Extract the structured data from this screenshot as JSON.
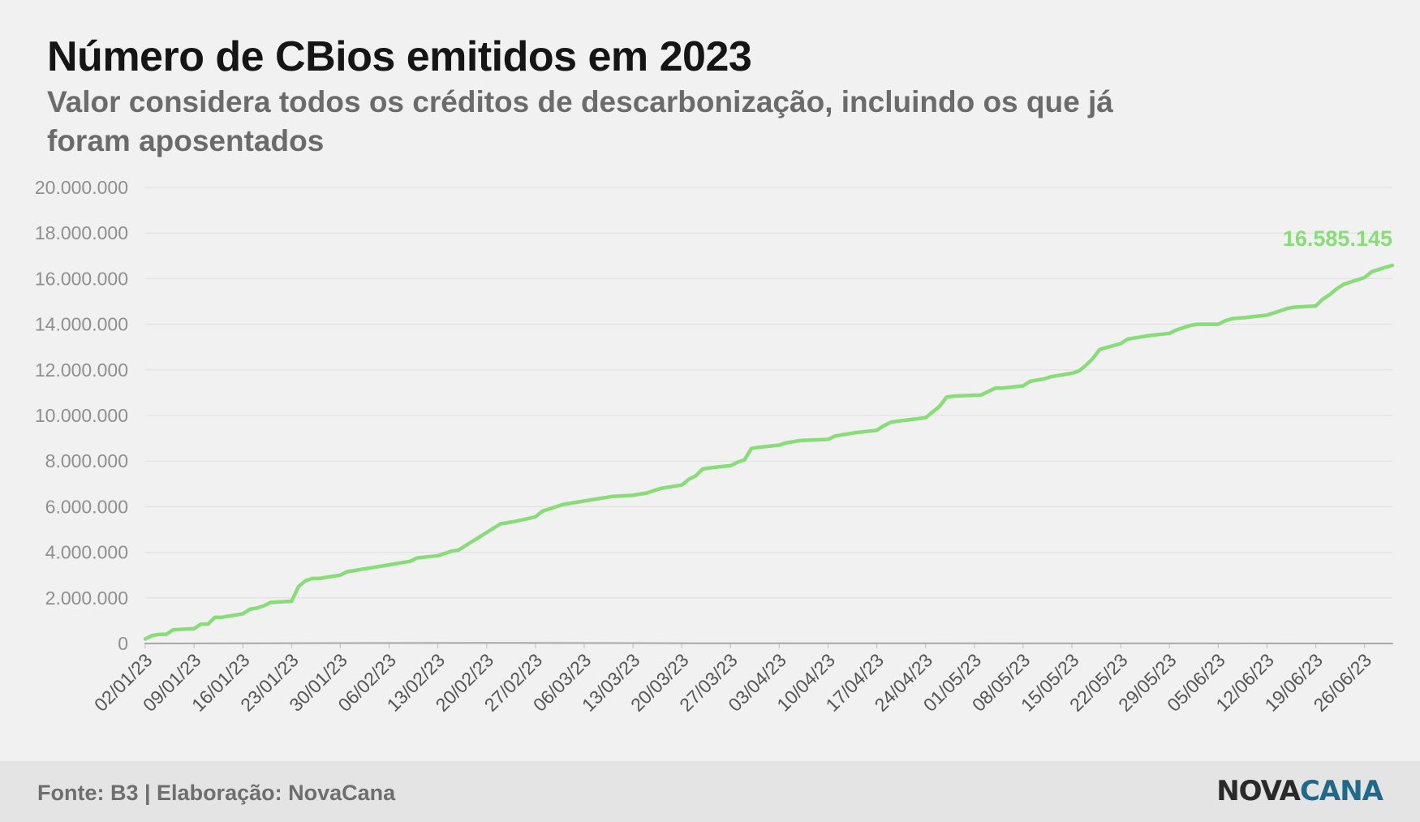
{
  "header": {
    "title": "Número de CBios emitidos em 2023",
    "subtitle": "Valor considera todos os créditos de descarbonização, incluindo os que já foram aposentados"
  },
  "footer": {
    "source": "Fonte: B3 | Elaboração: NovaCana",
    "logo_part1": "NOVA",
    "logo_part2": "CANA"
  },
  "colors": {
    "main_line": "#88dd78",
    "secondary_line": "#a8a8a8",
    "grid": "#e0e0e0",
    "logo_dark": "#2a2a2a",
    "logo_blue": "#1f6a8a"
  },
  "chart_data": {
    "type": "line",
    "title": "Número de CBios emitidos em 2023",
    "subtitle": "Valor considera todos os créditos de descarbonização, incluindo os que já foram aposentados",
    "xlabel": "",
    "ylabel": "",
    "ylim": [
      0,
      20000000
    ],
    "grid": true,
    "legend": "none",
    "y_ticks": [
      "0",
      "2.000.000",
      "4.000.000",
      "6.000.000",
      "8.000.000",
      "10.000.000",
      "12.000.000",
      "14.000.000",
      "16.000.000",
      "18.000.000",
      "20.000.000"
    ],
    "x_ticks": [
      "02/01/23",
      "09/01/23",
      "16/01/23",
      "23/01/23",
      "30/01/23",
      "06/02/23",
      "13/02/23",
      "20/02/23",
      "27/02/23",
      "06/03/23",
      "13/03/23",
      "20/03/23",
      "27/03/23",
      "03/04/23",
      "10/04/23",
      "17/04/23",
      "24/04/23",
      "01/05/23",
      "08/05/23",
      "15/05/23",
      "22/05/23",
      "29/05/23",
      "05/06/23",
      "12/06/23",
      "19/06/23",
      "26/06/23"
    ],
    "end_label": "16.585.145",
    "series": [
      {
        "x": [
          "2023-01-02",
          "2023-01-03",
          "2023-01-04",
          "2023-01-05",
          "2023-01-06",
          "2023-01-09",
          "2023-01-10",
          "2023-01-11",
          "2023-01-12",
          "2023-01-13",
          "2023-01-16",
          "2023-01-17",
          "2023-01-18",
          "2023-01-19",
          "2023-01-20",
          "2023-01-23",
          "2023-01-24",
          "2023-01-25",
          "2023-01-26",
          "2023-01-27",
          "2023-01-30",
          "2023-01-31",
          "2023-02-01",
          "2023-02-02",
          "2023-02-03",
          "2023-02-06",
          "2023-02-07",
          "2023-02-08",
          "2023-02-09",
          "2023-02-10",
          "2023-02-13",
          "2023-02-14",
          "2023-02-15",
          "2023-02-16",
          "2023-02-17",
          "2023-02-22",
          "2023-02-23",
          "2023-02-24",
          "2023-02-27",
          "2023-02-28",
          "2023-03-01",
          "2023-03-02",
          "2023-03-03",
          "2023-03-06",
          "2023-03-07",
          "2023-03-08",
          "2023-03-09",
          "2023-03-10",
          "2023-03-13",
          "2023-03-14",
          "2023-03-15",
          "2023-03-16",
          "2023-03-17",
          "2023-03-20",
          "2023-03-21",
          "2023-03-22",
          "2023-03-23",
          "2023-03-24",
          "2023-03-27",
          "2023-03-28",
          "2023-03-29",
          "2023-03-30",
          "2023-03-31",
          "2023-04-03",
          "2023-04-04",
          "2023-04-05",
          "2023-04-06",
          "2023-04-10",
          "2023-04-11",
          "2023-04-12",
          "2023-04-13",
          "2023-04-14",
          "2023-04-17",
          "2023-04-18",
          "2023-04-19",
          "2023-04-20",
          "2023-04-24",
          "2023-04-25",
          "2023-04-26",
          "2023-04-27",
          "2023-04-28",
          "2023-05-02",
          "2023-05-03",
          "2023-05-04",
          "2023-05-05",
          "2023-05-08",
          "2023-05-09",
          "2023-05-10",
          "2023-05-11",
          "2023-05-12",
          "2023-05-15",
          "2023-05-16",
          "2023-05-17",
          "2023-05-18",
          "2023-05-19",
          "2023-05-22",
          "2023-05-23",
          "2023-05-24",
          "2023-05-25",
          "2023-05-26",
          "2023-05-29",
          "2023-05-30",
          "2023-05-31",
          "2023-06-01",
          "2023-06-02",
          "2023-06-05",
          "2023-06-06",
          "2023-06-07",
          "2023-06-09",
          "2023-06-12",
          "2023-06-13",
          "2023-06-14",
          "2023-06-15",
          "2023-06-16",
          "2023-06-19",
          "2023-06-20",
          "2023-06-21",
          "2023-06-22",
          "2023-06-23",
          "2023-06-26",
          "2023-06-27",
          "2023-06-28",
          "2023-06-29",
          "2023-06-30"
        ],
        "values": [
          200000,
          350000,
          400000,
          400000,
          600000,
          650000,
          850000,
          850000,
          1150000,
          1150000,
          1300000,
          1500000,
          1550000,
          1650000,
          1800000,
          1850000,
          2500000,
          2750000,
          2850000,
          2850000,
          3000000,
          3150000,
          3200000,
          3250000,
          3300000,
          3450000,
          3500000,
          3550000,
          3600000,
          3750000,
          3850000,
          3950000,
          4050000,
          4100000,
          4300000,
          5250000,
          5300000,
          5350000,
          5550000,
          5800000,
          5900000,
          6000000,
          6100000,
          6250000,
          6300000,
          6350000,
          6400000,
          6450000,
          6500000,
          6550000,
          6600000,
          6700000,
          6800000,
          6950000,
          7200000,
          7350000,
          7650000,
          7700000,
          7800000,
          7950000,
          8050000,
          8550000,
          8600000,
          8700000,
          8800000,
          8850000,
          8900000,
          8950000,
          9100000,
          9150000,
          9200000,
          9250000,
          9350000,
          9550000,
          9700000,
          9750000,
          9900000,
          10150000,
          10400000,
          10800000,
          10850000,
          10900000,
          11050000,
          11200000,
          11200000,
          11300000,
          11500000,
          11550000,
          11600000,
          11700000,
          11850000,
          11950000,
          12200000,
          12500000,
          12900000,
          13150000,
          13350000,
          13400000,
          13450000,
          13500000,
          13600000,
          13750000,
          13850000,
          13950000,
          14000000,
          14000000,
          14150000,
          14250000,
          14300000,
          14400000,
          14500000,
          14600000,
          14700000,
          14750000,
          14800000,
          15100000,
          15300000,
          15550000,
          15750000,
          16050000,
          16300000,
          16400000,
          16500000,
          16585145
        ]
      },
      {
        "x": [
          "2023-01-02",
          "2023-02-20",
          "2023-03-22",
          "2023-06-30"
        ],
        "values": [
          0,
          30000,
          10000,
          0
        ]
      }
    ]
  }
}
